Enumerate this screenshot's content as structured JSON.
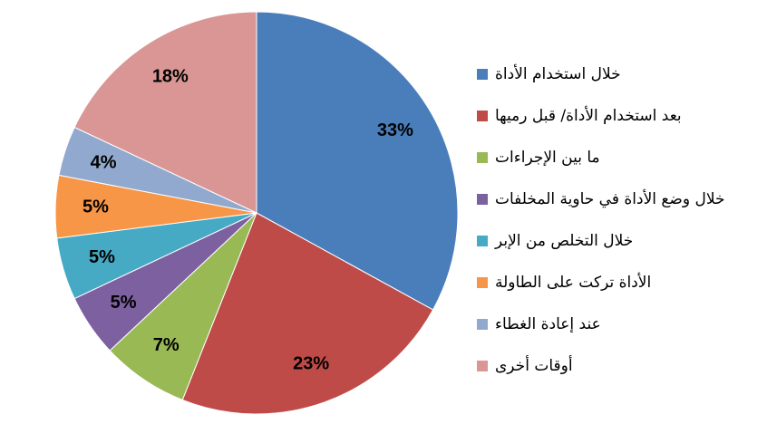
{
  "chart_data": {
    "type": "pie",
    "categories": [
      "خلال استخدام الأداة",
      "بعد استخدام الأداة/ قبل رميها",
      "ما بين الإجراءات",
      "خلال وضع الأداة في حاوية المخلفات",
      "خلال التخلص من الإبر",
      "الأداة تركت على الطاولة",
      "عند إعادة الغطاء",
      "أوقات أخرى"
    ],
    "values": [
      33,
      23,
      7,
      5,
      5,
      5,
      4,
      18
    ],
    "value_labels": [
      "33%",
      "23%",
      "7%",
      "5%",
      "5%",
      "5%",
      "4%",
      "18%"
    ],
    "colors": [
      "#4a7ebb",
      "#be4b48",
      "#98b954",
      "#7d60a0",
      "#46aac5",
      "#f79646",
      "#92a9cf",
      "#d99694"
    ],
    "legend": "right"
  }
}
